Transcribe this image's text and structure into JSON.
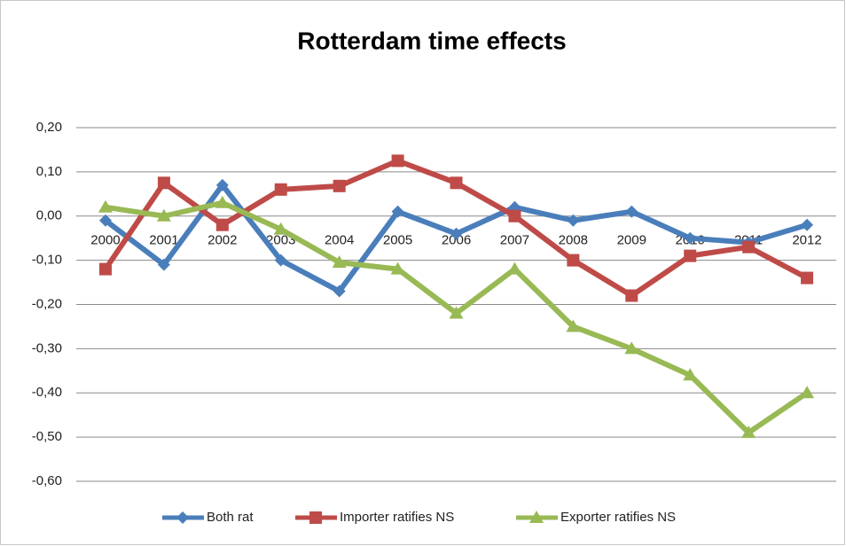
{
  "chart_data": {
    "type": "line",
    "title": "Rotterdam time effects",
    "categories": [
      "2000",
      "2001",
      "2002",
      "2003",
      "2004",
      "2005",
      "2006",
      "2007",
      "2008",
      "2009",
      "2010",
      "2011",
      "2012"
    ],
    "series": [
      {
        "name": "Both rat",
        "color": "#4a7ebb",
        "marker": "diamond",
        "values": [
          -0.01,
          -0.11,
          0.07,
          -0.1,
          -0.17,
          0.01,
          -0.04,
          0.02,
          -0.01,
          0.01,
          -0.05,
          -0.06,
          -0.02
        ]
      },
      {
        "name": "Importer ratifies NS",
        "color": "#be4b48",
        "marker": "square",
        "values": [
          -0.12,
          0.075,
          -0.02,
          0.06,
          0.068,
          0.125,
          0.075,
          0.0,
          -0.1,
          -0.18,
          -0.09,
          -0.07,
          -0.14
        ]
      },
      {
        "name": "Exporter ratifies NS",
        "color": "#98b954",
        "marker": "triangle",
        "values": [
          0.02,
          0.0,
          0.03,
          -0.03,
          -0.105,
          -0.12,
          -0.22,
          -0.12,
          -0.25,
          -0.3,
          -0.36,
          -0.49,
          -0.4
        ]
      }
    ],
    "ylim": [
      -0.6,
      0.2
    ],
    "yticks": [
      {
        "value": 0.2,
        "label": "0,20"
      },
      {
        "value": 0.1,
        "label": "0,10"
      },
      {
        "value": 0,
        "label": "0,00"
      },
      {
        "value": -0.1,
        "label": "-0,10"
      },
      {
        "value": -0.2,
        "label": "-0,20"
      },
      {
        "value": -0.3,
        "label": "-0,30"
      },
      {
        "value": -0.4,
        "label": "-0,40"
      },
      {
        "value": -0.5,
        "label": "-0,50"
      },
      {
        "value": -0.6,
        "label": "-0,60"
      }
    ],
    "grid": true,
    "legend": "bottom"
  }
}
